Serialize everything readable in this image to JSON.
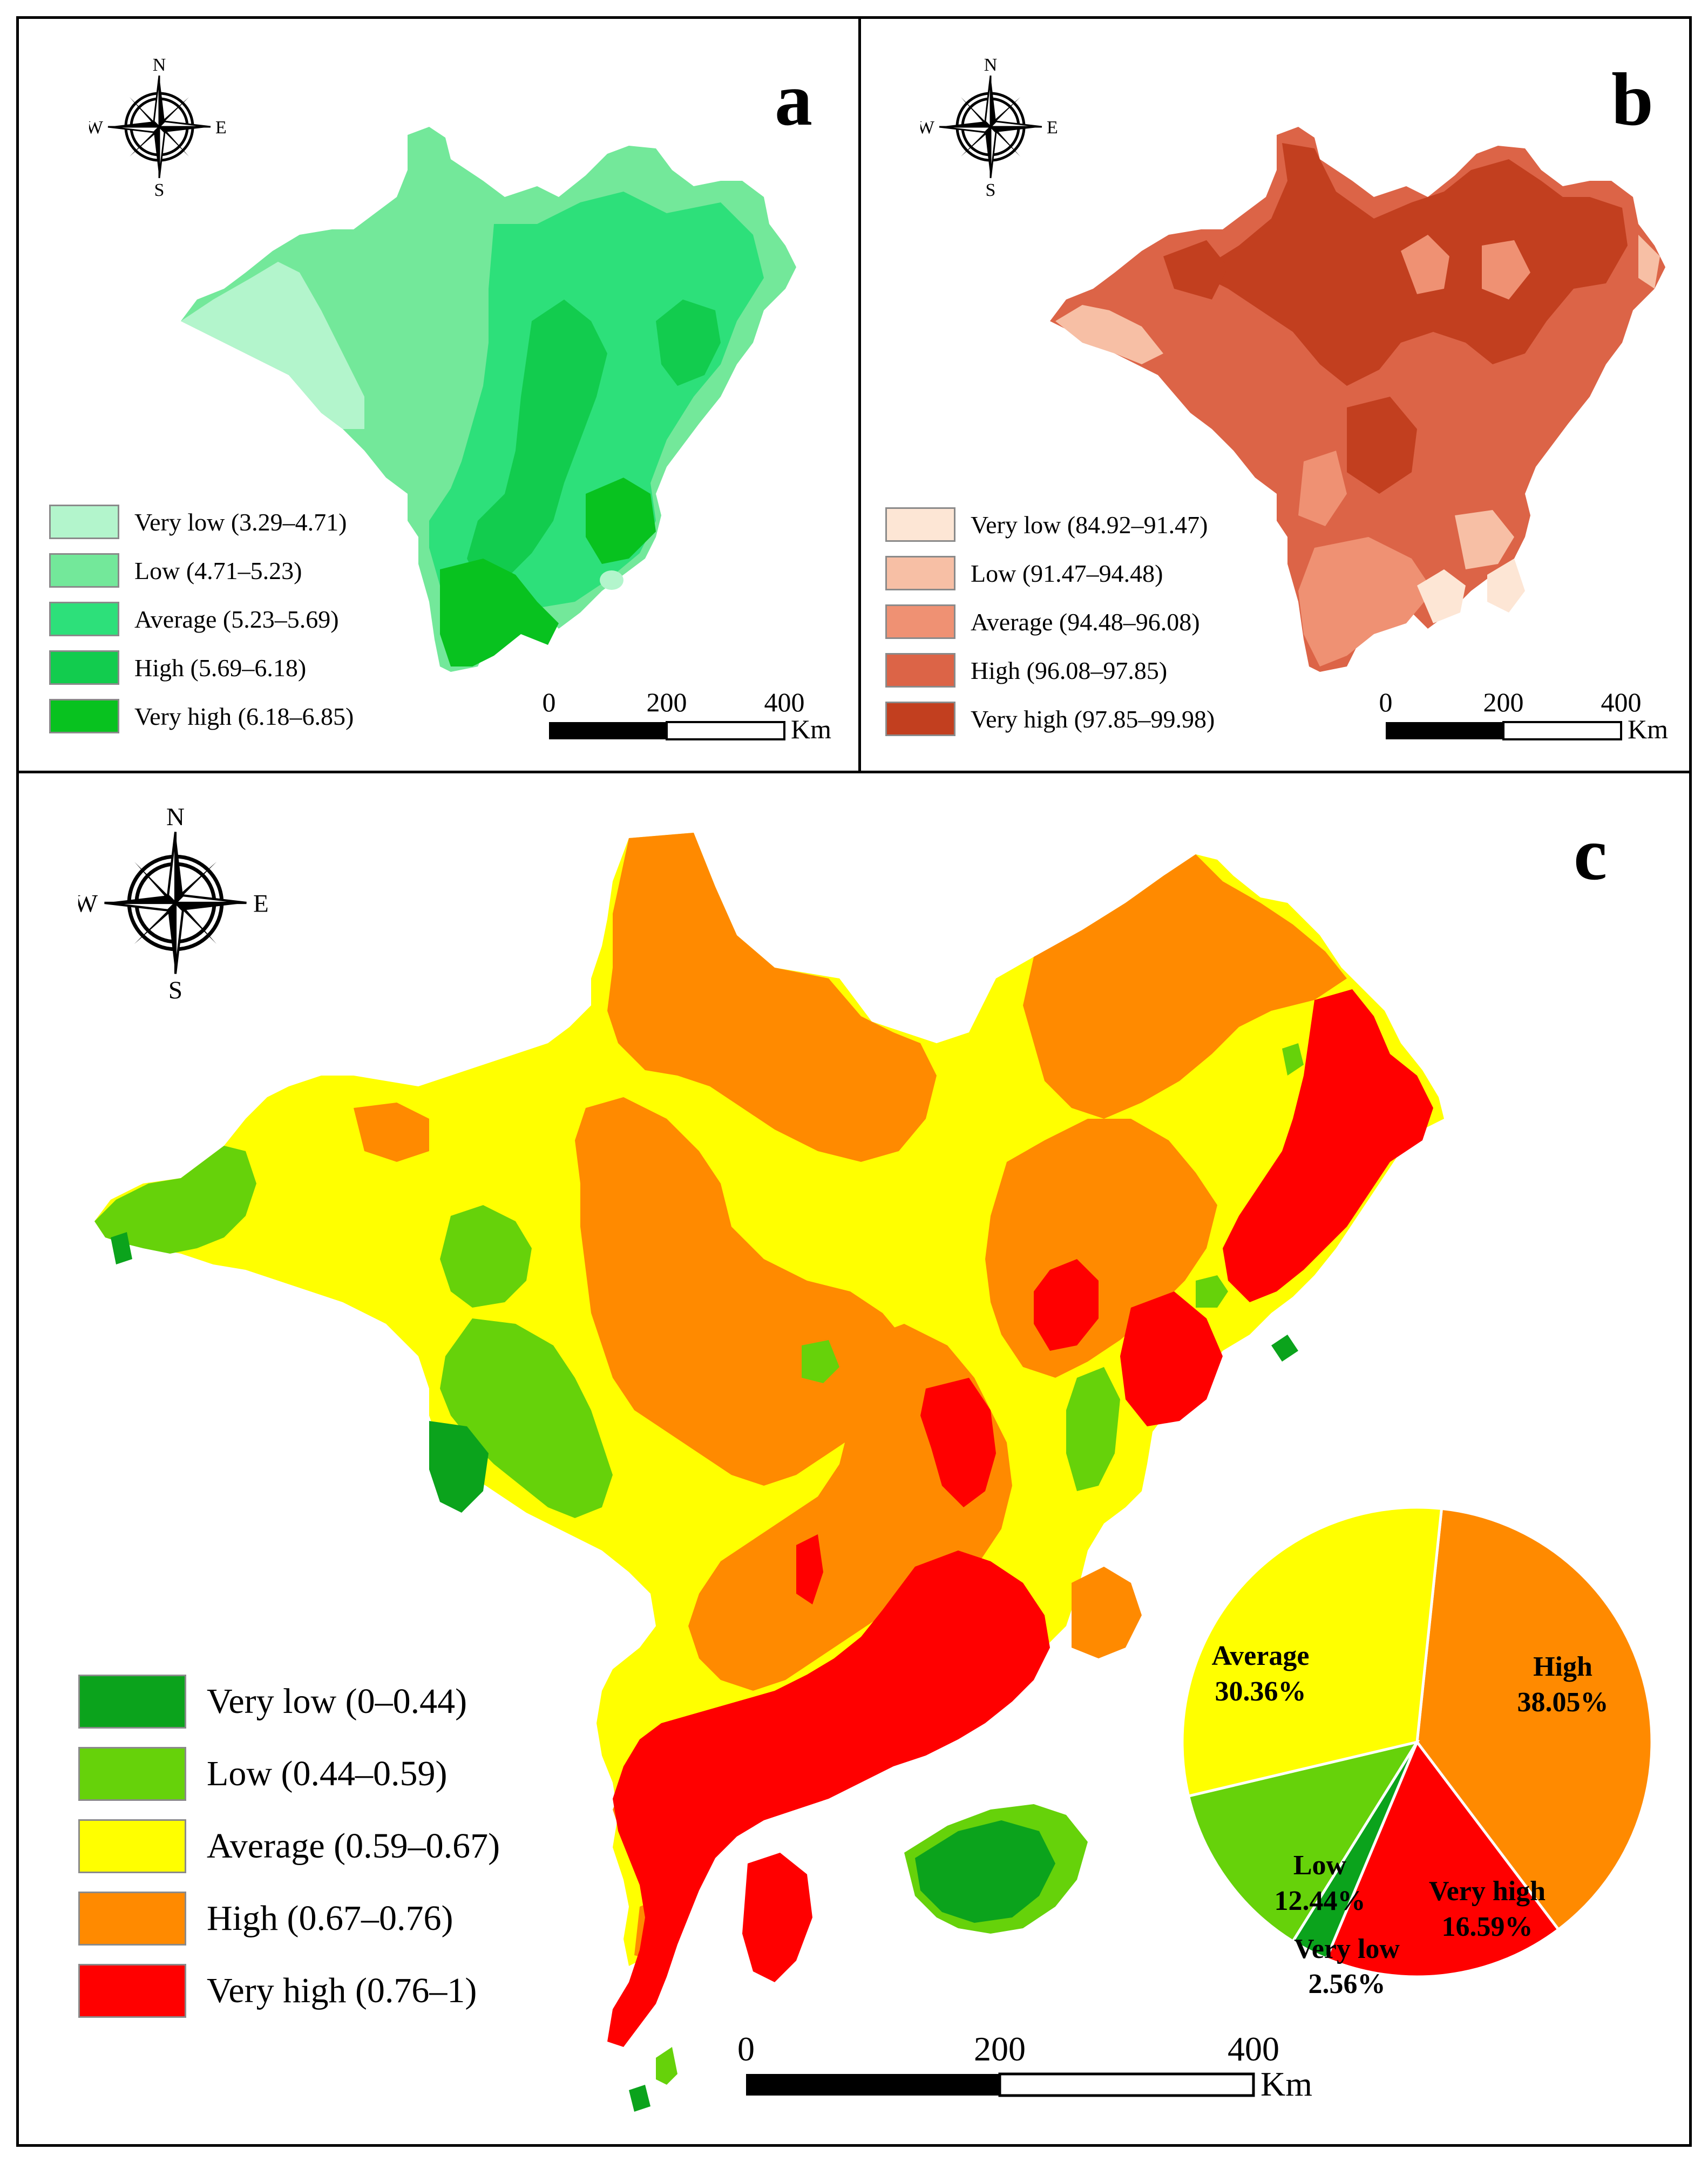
{
  "panels": [
    {
      "letter": "a",
      "legend": [
        {
          "label": "Very low (3.29–4.71)",
          "color": "#b3f5cc"
        },
        {
          "label": "Low (4.71–5.23)",
          "color": "#73e89a"
        },
        {
          "label": "Average (5.23–5.69)",
          "color": "#2de07a"
        },
        {
          "label": "High (5.69–6.18)",
          "color": "#12cc4e"
        },
        {
          "label": "Very high (6.18–6.85)",
          "color": "#08c21f"
        }
      ],
      "scale": {
        "ticks": [
          "0",
          "200",
          "400"
        ],
        "unit": "Km"
      }
    },
    {
      "letter": "b",
      "legend": [
        {
          "label": "Very low (84.92–91.47)",
          "color": "#fde6d5"
        },
        {
          "label": "Low (91.47–94.48)",
          "color": "#f7bfa5"
        },
        {
          "label": "Average (94.48–96.08)",
          "color": "#ef9173"
        },
        {
          "label": "High (96.08–97.85)",
          "color": "#dc6447"
        },
        {
          "label": "Very high (97.85–99.98)",
          "color": "#c23f1f"
        }
      ],
      "scale": {
        "ticks": [
          "0",
          "200",
          "400"
        ],
        "unit": "Km"
      }
    },
    {
      "letter": "c",
      "legend": [
        {
          "label": "Very low (0–0.44)",
          "color": "#0ba31c"
        },
        {
          "label": "Low (0.44–0.59)",
          "color": "#66d20a"
        },
        {
          "label": "Average (0.59–0.67)",
          "color": "#ffff00"
        },
        {
          "label": "High (0.67–0.76)",
          "color": "#ff8a00"
        },
        {
          "label": "Very high (0.76–1)",
          "color": "#ff0000"
        }
      ],
      "scale": {
        "ticks": [
          "0",
          "200",
          "400"
        ],
        "unit": "Km"
      }
    }
  ],
  "compass": {
    "n": "N",
    "s": "S",
    "e": "E",
    "w": "W"
  },
  "pie": {
    "slices": [
      {
        "name": "High",
        "percent": "38.05%",
        "value": 38.05,
        "color": "#ff8a00"
      },
      {
        "name": "Very high",
        "percent": "16.59%",
        "value": 16.59,
        "color": "#ff0000"
      },
      {
        "name": "Very low",
        "percent": "2.56%",
        "value": 2.56,
        "color": "#0ba31c"
      },
      {
        "name": "Low",
        "percent": "12.44%",
        "value": 12.44,
        "color": "#66d20a"
      },
      {
        "name": "Average",
        "percent": "30.36%",
        "value": 30.36,
        "color": "#ffff00"
      }
    ]
  }
}
